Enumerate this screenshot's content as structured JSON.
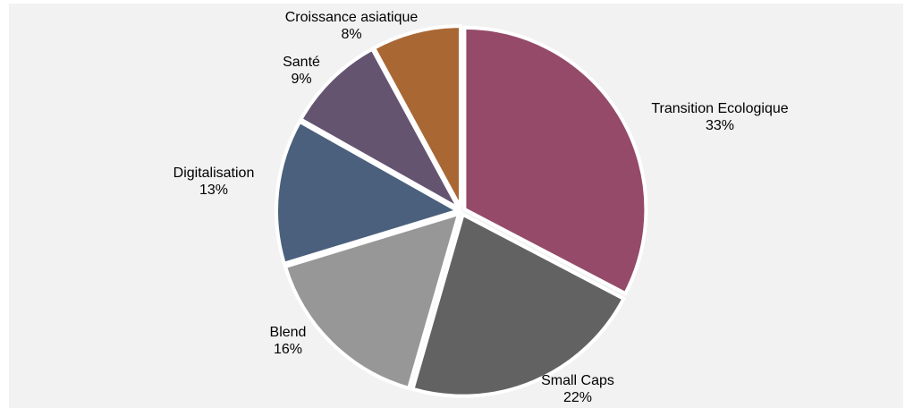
{
  "chart_data": {
    "type": "pie",
    "title": "",
    "start_angle_deg": 0,
    "direction": "clockwise",
    "slices": [
      {
        "label": "Transition Ecologique",
        "pct_label": "33%",
        "value": 33,
        "color": "#944a68"
      },
      {
        "label": "Small Caps",
        "pct_label": "22%",
        "value": 22,
        "color": "#626262"
      },
      {
        "label": "Blend",
        "pct_label": "16%",
        "value": 16,
        "color": "#979797"
      },
      {
        "label": "Digitalisation",
        "pct_label": "13%",
        "value": 13,
        "color": "#4b607c"
      },
      {
        "label": "Santé",
        "pct_label": "9%",
        "value": 9,
        "color": "#645470"
      },
      {
        "label": "Croissance asiatique",
        "pct_label": "8%",
        "value": 8,
        "color": "#a96734"
      }
    ]
  }
}
